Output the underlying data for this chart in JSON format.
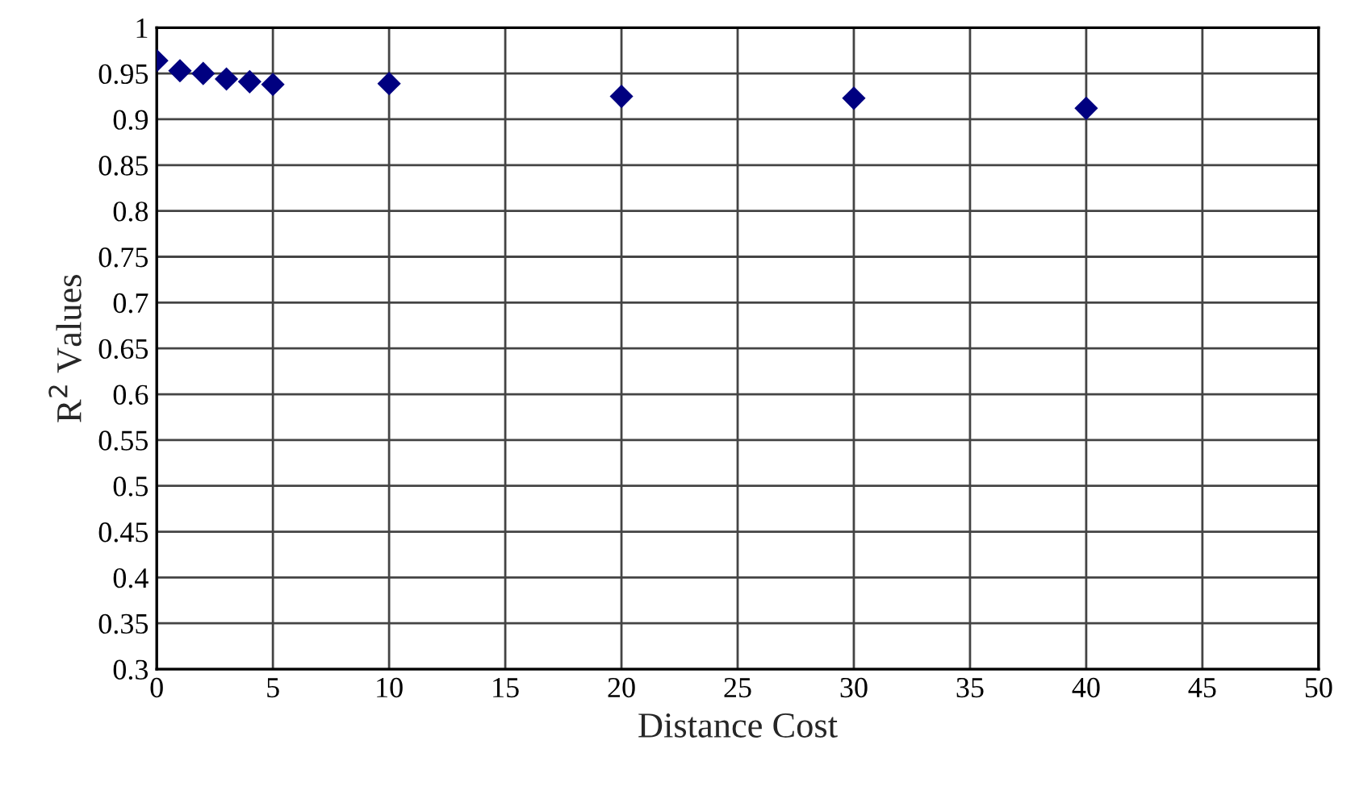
{
  "chart_data": {
    "type": "scatter",
    "xlabel": "Distance Cost",
    "ylabel": "R$^{2}$ Values",
    "x": [
      0,
      1,
      2,
      3,
      4,
      5,
      10,
      20,
      30,
      40
    ],
    "values": [
      0.964,
      0.953,
      0.95,
      0.944,
      0.941,
      0.938,
      0.939,
      0.925,
      0.923,
      0.912
    ],
    "color": "#000080",
    "marker": "diamond",
    "grid": true,
    "xlim": [
      0,
      50
    ],
    "xticks": [
      0,
      5,
      10,
      15,
      20,
      25,
      30,
      35,
      40,
      45,
      50
    ],
    "ylim": [
      0.3,
      1
    ],
    "yticks": [
      0.3,
      0.35,
      0.4,
      0.45,
      0.5,
      0.55,
      0.6,
      0.65,
      0.7,
      0.75,
      0.8,
      0.85,
      0.9,
      0.95,
      1
    ]
  }
}
